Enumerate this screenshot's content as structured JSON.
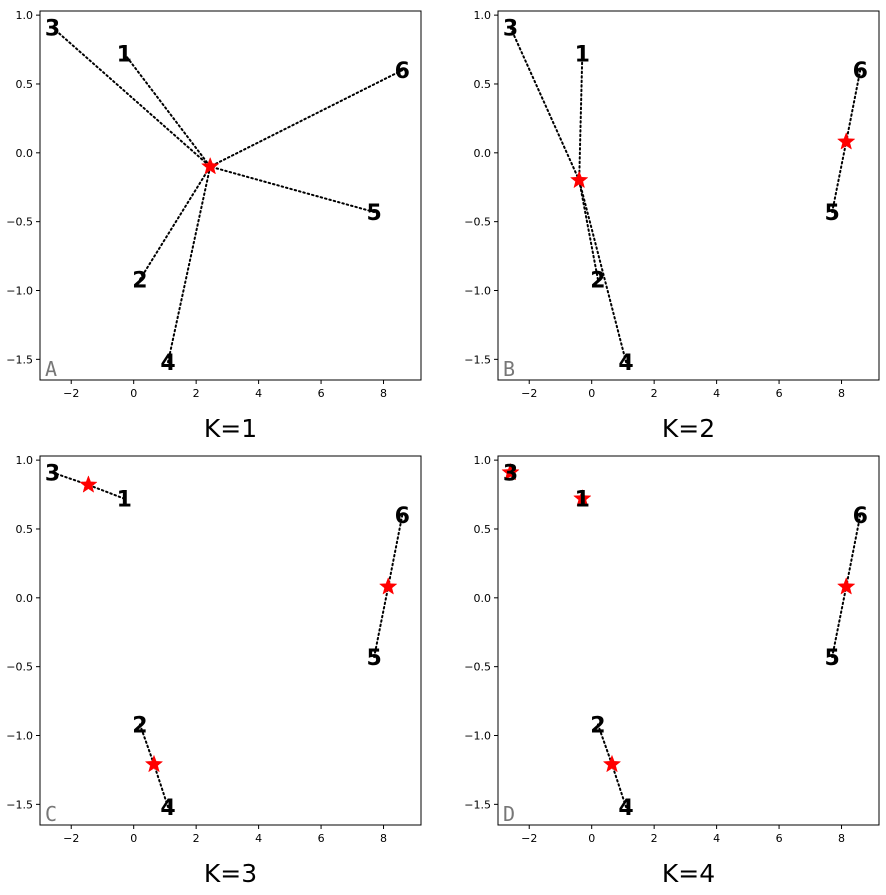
{
  "figure": {
    "description": "K-means style clustering of six labeled points into K clusters; red stars are centroids, dotted lines connect points to their centroid."
  },
  "chart_data": [
    {
      "type": "scatter",
      "panel_letter": "A",
      "title": "K=1",
      "xlim": [
        -3,
        9.2
      ],
      "ylim": [
        -1.65,
        1.03
      ],
      "xticks": [
        -2,
        0,
        2,
        4,
        6,
        8
      ],
      "yticks": [
        -1.5,
        -1.0,
        -0.5,
        0.0,
        0.5,
        1.0
      ],
      "xtick_labels": [
        "−2",
        "0",
        "2",
        "4",
        "6",
        "8"
      ],
      "ytick_labels": [
        "−1.5",
        "−1.0",
        "−0.5",
        "0.0",
        "0.5",
        "1.0"
      ],
      "points": [
        {
          "label": "1",
          "x": -0.3,
          "y": 0.72,
          "cluster": 0
        },
        {
          "label": "2",
          "x": 0.2,
          "y": -0.92,
          "cluster": 0
        },
        {
          "label": "3",
          "x": -2.6,
          "y": 0.91,
          "cluster": 0
        },
        {
          "label": "4",
          "x": 1.1,
          "y": -1.52,
          "cluster": 0
        },
        {
          "label": "5",
          "x": 7.7,
          "y": -0.43,
          "cluster": 0
        },
        {
          "label": "6",
          "x": 8.6,
          "y": 0.6,
          "cluster": 0
        }
      ],
      "centroids": [
        {
          "x": 2.45,
          "y": -0.1
        }
      ]
    },
    {
      "type": "scatter",
      "panel_letter": "B",
      "title": "K=2",
      "xlim": [
        -3,
        9.2
      ],
      "ylim": [
        -1.65,
        1.03
      ],
      "xticks": [
        -2,
        0,
        2,
        4,
        6,
        8
      ],
      "yticks": [
        -1.5,
        -1.0,
        -0.5,
        0.0,
        0.5,
        1.0
      ],
      "xtick_labels": [
        "−2",
        "0",
        "2",
        "4",
        "6",
        "8"
      ],
      "ytick_labels": [
        "−1.5",
        "−1.0",
        "−0.5",
        "0.0",
        "0.5",
        "1.0"
      ],
      "points": [
        {
          "label": "1",
          "x": -0.3,
          "y": 0.72,
          "cluster": 0
        },
        {
          "label": "2",
          "x": 0.2,
          "y": -0.92,
          "cluster": 0
        },
        {
          "label": "3",
          "x": -2.6,
          "y": 0.91,
          "cluster": 0
        },
        {
          "label": "4",
          "x": 1.1,
          "y": -1.52,
          "cluster": 0
        },
        {
          "label": "5",
          "x": 7.7,
          "y": -0.43,
          "cluster": 1
        },
        {
          "label": "6",
          "x": 8.6,
          "y": 0.6,
          "cluster": 1
        }
      ],
      "centroids": [
        {
          "x": -0.4,
          "y": -0.2
        },
        {
          "x": 8.15,
          "y": 0.08
        }
      ]
    },
    {
      "type": "scatter",
      "panel_letter": "C",
      "title": "K=3",
      "xlim": [
        -3,
        9.2
      ],
      "ylim": [
        -1.65,
        1.03
      ],
      "xticks": [
        -2,
        0,
        2,
        4,
        6,
        8
      ],
      "yticks": [
        -1.5,
        -1.0,
        -0.5,
        0.0,
        0.5,
        1.0
      ],
      "xtick_labels": [
        "−2",
        "0",
        "2",
        "4",
        "6",
        "8"
      ],
      "ytick_labels": [
        "−1.5",
        "−1.0",
        "−0.5",
        "0.0",
        "0.5",
        "1.0"
      ],
      "points": [
        {
          "label": "1",
          "x": -0.3,
          "y": 0.72,
          "cluster": 0
        },
        {
          "label": "2",
          "x": 0.2,
          "y": -0.92,
          "cluster": 2
        },
        {
          "label": "3",
          "x": -2.6,
          "y": 0.91,
          "cluster": 0
        },
        {
          "label": "4",
          "x": 1.1,
          "y": -1.52,
          "cluster": 2
        },
        {
          "label": "5",
          "x": 7.7,
          "y": -0.43,
          "cluster": 1
        },
        {
          "label": "6",
          "x": 8.6,
          "y": 0.6,
          "cluster": 1
        }
      ],
      "centroids": [
        {
          "x": -1.45,
          "y": 0.82
        },
        {
          "x": 8.15,
          "y": 0.08
        },
        {
          "x": 0.65,
          "y": -1.21
        }
      ]
    },
    {
      "type": "scatter",
      "panel_letter": "D",
      "title": "K=4",
      "xlim": [
        -3,
        9.2
      ],
      "ylim": [
        -1.65,
        1.03
      ],
      "xticks": [
        -2,
        0,
        2,
        4,
        6,
        8
      ],
      "yticks": [
        -1.5,
        -1.0,
        -0.5,
        0.0,
        0.5,
        1.0
      ],
      "xtick_labels": [
        "−2",
        "0",
        "2",
        "4",
        "6",
        "8"
      ],
      "ytick_labels": [
        "−1.5",
        "−1.0",
        "−0.5",
        "0.0",
        "0.5",
        "1.0"
      ],
      "points": [
        {
          "label": "1",
          "x": -0.3,
          "y": 0.72,
          "cluster": 1
        },
        {
          "label": "2",
          "x": 0.2,
          "y": -0.92,
          "cluster": 3
        },
        {
          "label": "3",
          "x": -2.6,
          "y": 0.91,
          "cluster": 0
        },
        {
          "label": "4",
          "x": 1.1,
          "y": -1.52,
          "cluster": 3
        },
        {
          "label": "5",
          "x": 7.7,
          "y": -0.43,
          "cluster": 2
        },
        {
          "label": "6",
          "x": 8.6,
          "y": 0.6,
          "cluster": 2
        }
      ],
      "centroids": [
        {
          "x": -2.6,
          "y": 0.91
        },
        {
          "x": -0.3,
          "y": 0.72
        },
        {
          "x": 8.15,
          "y": 0.08
        },
        {
          "x": 0.65,
          "y": -1.21
        }
      ]
    }
  ],
  "colors": {
    "centroid": "#ff0000",
    "line": "#000000",
    "axis": "#000000",
    "panel_letter": "#777777"
  }
}
